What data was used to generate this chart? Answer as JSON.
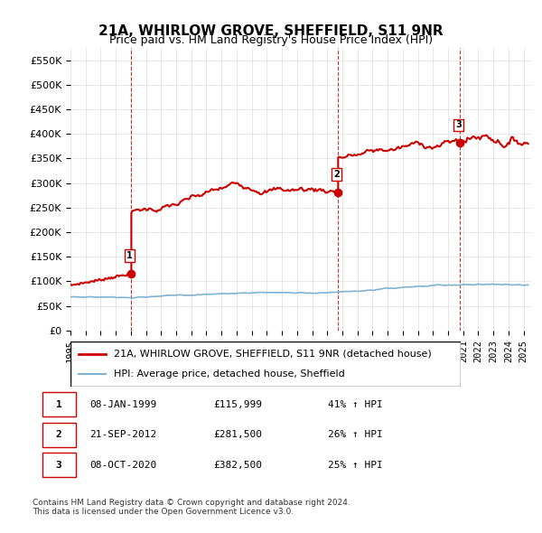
{
  "title": "21A, WHIRLOW GROVE, SHEFFIELD, S11 9NR",
  "subtitle": "Price paid vs. HM Land Registry's House Price Index (HPI)",
  "ylabel": "",
  "ylim": [
    0,
    575000
  ],
  "yticks": [
    0,
    50000,
    100000,
    150000,
    200000,
    250000,
    300000,
    350000,
    400000,
    450000,
    500000,
    550000
  ],
  "xlim_start": 1995.0,
  "xlim_end": 2025.5,
  "red_line_color": "#cc0000",
  "blue_line_color": "#7fb3d3",
  "sale_marker_color": "#cc0000",
  "vline_color": "#cc0000",
  "grid_color": "#dddddd",
  "bg_color": "#ffffff",
  "sales": [
    {
      "date_num": 1999.03,
      "price": 115999,
      "label": "1"
    },
    {
      "date_num": 2012.72,
      "price": 281500,
      "label": "2"
    },
    {
      "date_num": 2020.77,
      "price": 382500,
      "label": "3"
    }
  ],
  "legend_entries": [
    {
      "label": "21A, WHIRLOW GROVE, SHEFFIELD, S11 9NR (detached house)",
      "color": "#cc0000",
      "lw": 2.0
    },
    {
      "label": "HPI: Average price, detached house, Sheffield",
      "color": "#7fb3d3",
      "lw": 1.5
    }
  ],
  "table_rows": [
    {
      "num": "1",
      "date": "08-JAN-1999",
      "price": "£115,999",
      "pct": "41% ↑ HPI"
    },
    {
      "num": "2",
      "date": "21-SEP-2012",
      "price": "£281,500",
      "pct": "26% ↑ HPI"
    },
    {
      "num": "3",
      "date": "08-OCT-2020",
      "price": "£382,500",
      "pct": "25% ↑ HPI"
    }
  ],
  "footer": "Contains HM Land Registry data © Crown copyright and database right 2024.\nThis data is licensed under the Open Government Licence v3.0.",
  "title_fontsize": 11,
  "subtitle_fontsize": 9,
  "tick_fontsize": 8,
  "legend_fontsize": 8,
  "table_fontsize": 8,
  "footer_fontsize": 6.5
}
